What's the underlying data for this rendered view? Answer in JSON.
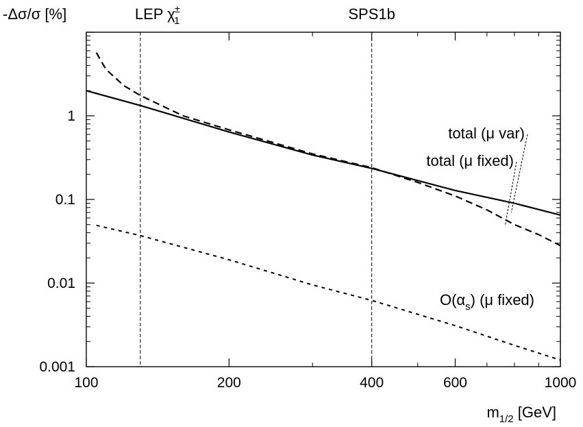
{
  "chart_data": {
    "type": "line",
    "xscale": "log",
    "yscale": "log",
    "xlim": [
      100,
      1000
    ],
    "ylim": [
      0.001,
      10
    ],
    "xlabel": {
      "main": "m",
      "sub": "1/2",
      "unit": " [GeV]"
    },
    "ylabel": "-Δσ/σ [%]",
    "xticks": [
      {
        "value": 100,
        "label": "100"
      },
      {
        "value": 200,
        "label": "200"
      },
      {
        "value": 400,
        "label": "400"
      },
      {
        "value": 600,
        "label": "600"
      },
      {
        "value": 1000,
        "label": "1000"
      }
    ],
    "xticks_minor": [
      300,
      500,
      700,
      800,
      900
    ],
    "yticks": [
      {
        "value": 0.001,
        "label": "0.001"
      },
      {
        "value": 0.01,
        "label": "0.01"
      },
      {
        "value": 0.1,
        "label": "0.1"
      },
      {
        "value": 1,
        "label": "1"
      }
    ],
    "vlines": [
      {
        "x": 130,
        "label": "LEP χ",
        "sup": "±",
        "sub": "1"
      },
      {
        "x": 400,
        "label": "SPS1b"
      }
    ],
    "series": [
      {
        "label": "total (μ fixed)",
        "style": "solid",
        "x": [
          100,
          130,
          200,
          300,
          400,
          600,
          800,
          1000
        ],
        "y": [
          2.0,
          1.33,
          0.64,
          0.34,
          0.235,
          0.128,
          0.09,
          0.065
        ]
      },
      {
        "label": "total (μ var)",
        "style": "dashed",
        "x": [
          105,
          110,
          120,
          130,
          160,
          200,
          300,
          400,
          500,
          600,
          700,
          800,
          900,
          1000
        ],
        "y": [
          5.7,
          3.6,
          2.3,
          1.75,
          1.0,
          0.68,
          0.35,
          0.24,
          0.16,
          0.11,
          0.075,
          0.05,
          0.038,
          0.028
        ]
      },
      {
        "label": "O(α_s) (μ fixed)",
        "style": "dotted",
        "x": [
          105,
          130,
          200,
          300,
          400,
          600,
          800,
          1000
        ],
        "y": [
          0.049,
          0.037,
          0.019,
          0.0095,
          0.0062,
          0.0031,
          0.0018,
          0.0012
        ]
      }
    ],
    "annotations": [
      {
        "text": "total (μ var)",
        "series": "total (μ var)",
        "pointer_to": {
          "x": 780,
          "y": 0.07
        }
      },
      {
        "text": "total (μ fixed)",
        "series": "total (μ fixed)",
        "pointer_to": {
          "x": 760,
          "y": 0.05
        }
      },
      {
        "text_pre": "O(α",
        "text_sub": "s",
        "text_post": ") (μ fixed)",
        "series": "O(α_s) (μ fixed)"
      }
    ]
  }
}
